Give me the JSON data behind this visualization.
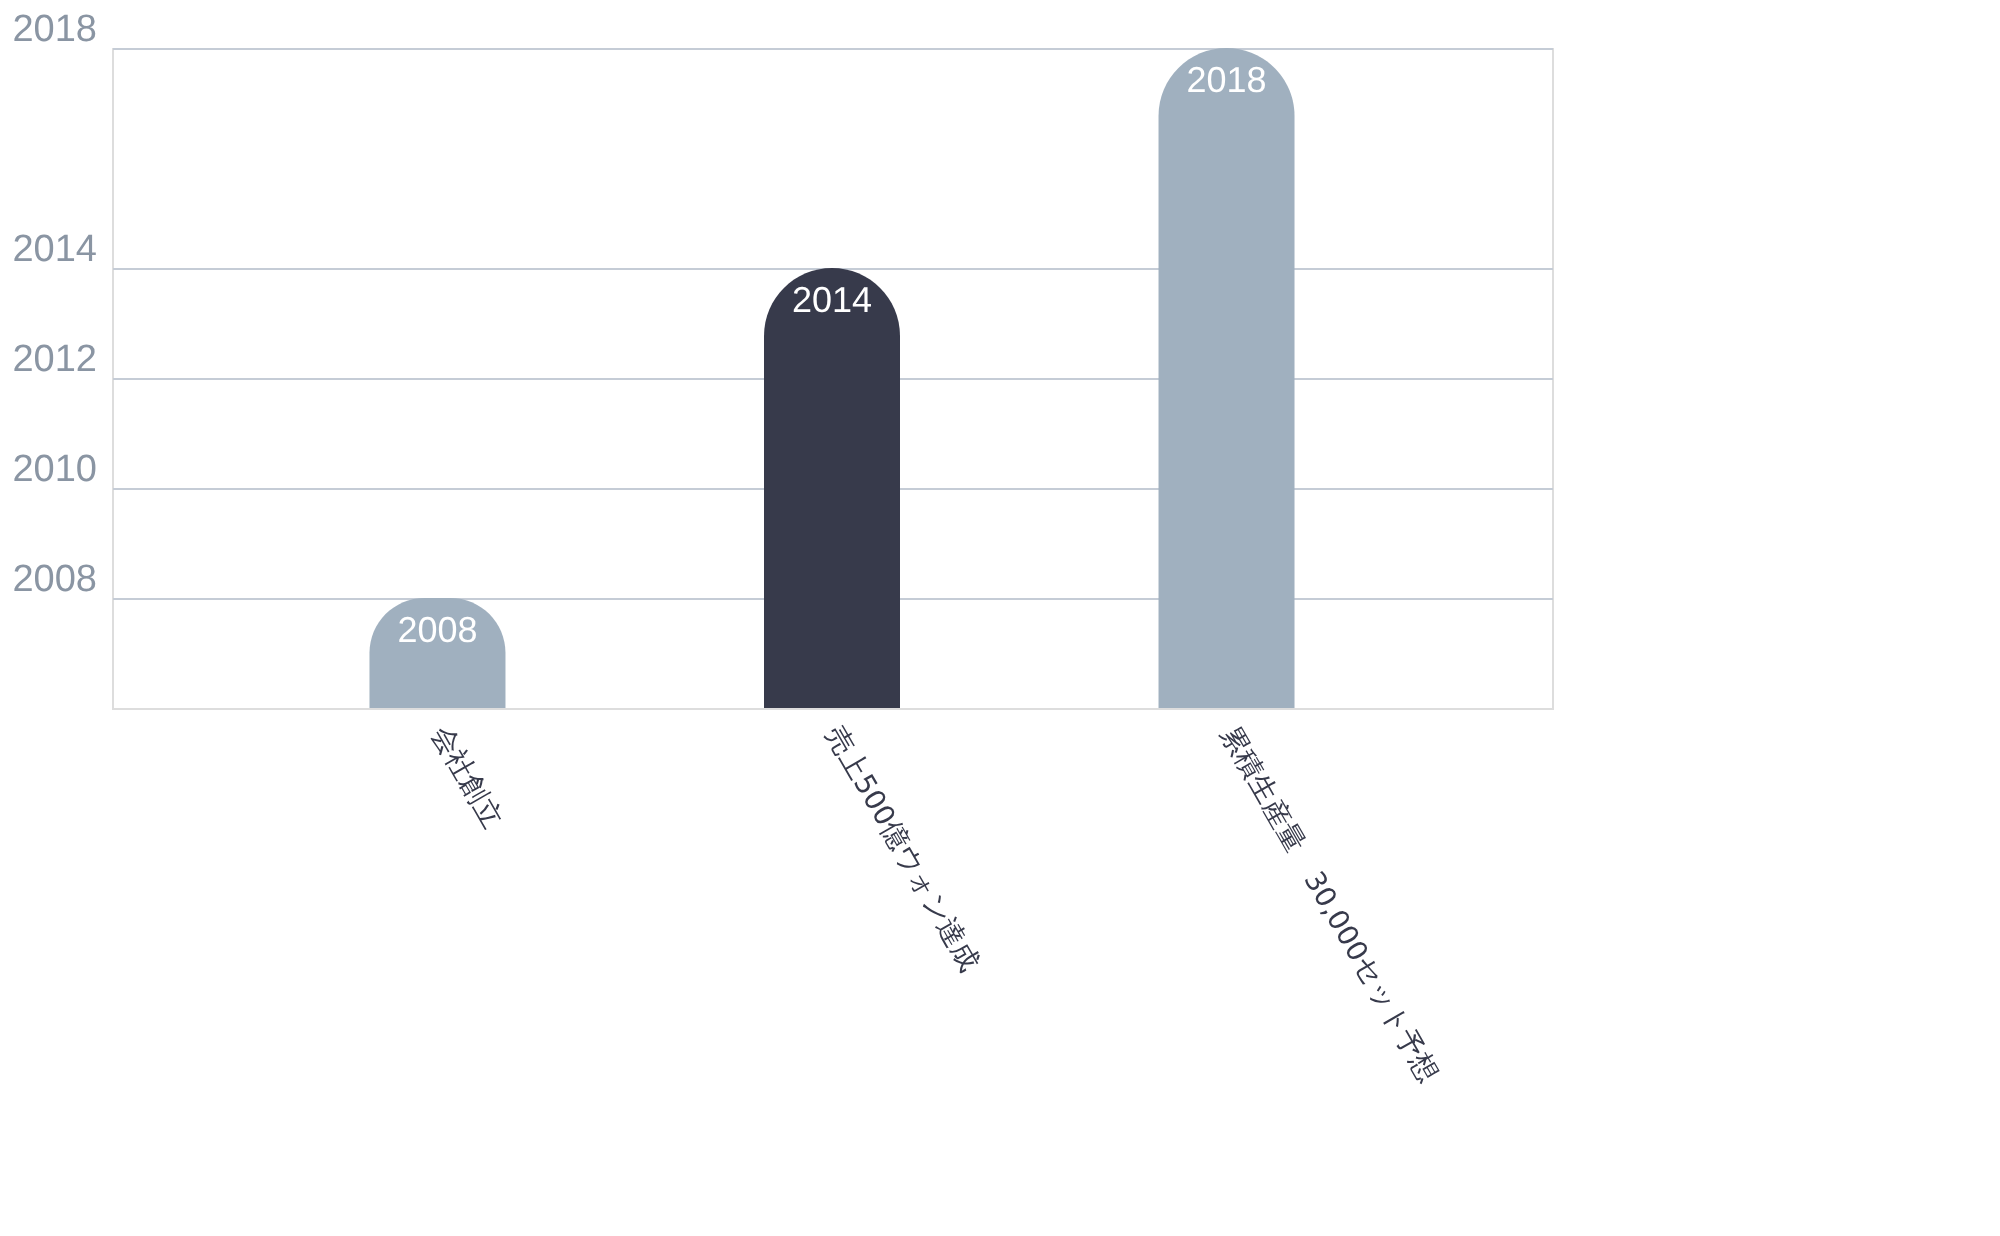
{
  "chart_data": {
    "type": "bar",
    "categories": [
      "会社創立",
      "売上500億ウォン達成",
      "累積生産量　30,000セット予想"
    ],
    "values": [
      2008,
      2014,
      2018
    ],
    "colors": [
      "#a0b0bf",
      "#373a4b",
      "#a0b0bf"
    ],
    "ylim": [
      2006,
      2018
    ],
    "yticks": [
      2008,
      2010,
      2012,
      2014,
      2018
    ],
    "grid": "y",
    "data_labels": true
  }
}
